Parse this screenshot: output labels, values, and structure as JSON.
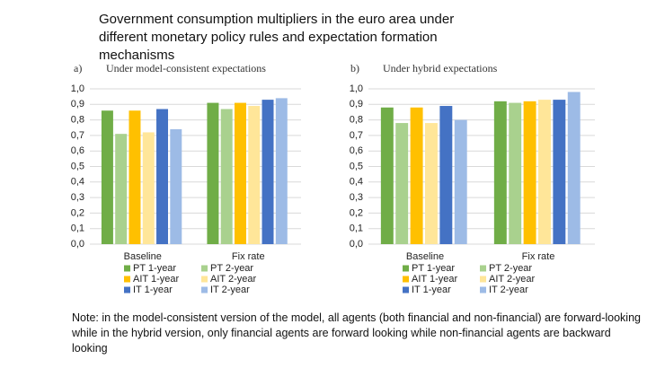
{
  "title": "Government consumption multipliers in the euro area under different monetary policy rules and expectation formation mechanisms",
  "note": "Note: in the model-consistent version of the model, all agents (both financial and non-financial) are forward-looking while in the hybrid version, only financial agents are forward looking while non-financial agents are backward looking",
  "chart_data": [
    {
      "type": "bar",
      "panel_label": "a)",
      "subtitle": "Under model-consistent expectations",
      "categories": [
        "Baseline",
        "Fix rate"
      ],
      "series": [
        {
          "name": "PT 1-year",
          "color": "#70ad47",
          "values": [
            0.86,
            0.91
          ]
        },
        {
          "name": "PT 2-year",
          "color": "#a9d18e",
          "values": [
            0.71,
            0.87
          ]
        },
        {
          "name": "AIT 1-year",
          "color": "#ffc000",
          "values": [
            0.86,
            0.91
          ]
        },
        {
          "name": "AIT 2-year",
          "color": "#ffe699",
          "values": [
            0.72,
            0.89
          ]
        },
        {
          "name": "IT 1-year",
          "color": "#4472c4",
          "values": [
            0.87,
            0.93
          ]
        },
        {
          "name": "IT 2-year",
          "color": "#9dbbe6",
          "values": [
            0.74,
            0.94
          ]
        }
      ],
      "ylim": [
        0,
        1
      ],
      "yticks": [
        {
          "value": 0,
          "label": "0,0"
        },
        {
          "value": 0.1,
          "label": "0,1"
        },
        {
          "value": 0.2,
          "label": "0,2"
        },
        {
          "value": 0.3,
          "label": "0,3"
        },
        {
          "value": 0.4,
          "label": "0,4"
        },
        {
          "value": 0.5,
          "label": "0,5"
        },
        {
          "value": 0.6,
          "label": "0,6"
        },
        {
          "value": 0.7,
          "label": "0,7"
        },
        {
          "value": 0.8,
          "label": "0,8"
        },
        {
          "value": 0.9,
          "label": "0,9"
        },
        {
          "value": 1,
          "label": "1,0"
        }
      ],
      "grid": true
    },
    {
      "type": "bar",
      "panel_label": "b)",
      "subtitle": "Under hybrid expectations",
      "categories": [
        "Baseline",
        "Fix rate"
      ],
      "series": [
        {
          "name": "PT 1-year",
          "color": "#70ad47",
          "values": [
            0.88,
            0.92
          ]
        },
        {
          "name": "PT 2-year",
          "color": "#a9d18e",
          "values": [
            0.78,
            0.91
          ]
        },
        {
          "name": "AIT 1-year",
          "color": "#ffc000",
          "values": [
            0.88,
            0.92
          ]
        },
        {
          "name": "AIT 2-year",
          "color": "#ffe699",
          "values": [
            0.78,
            0.93
          ]
        },
        {
          "name": "IT 1-year",
          "color": "#4472c4",
          "values": [
            0.89,
            0.93
          ]
        },
        {
          "name": "IT 2-year",
          "color": "#9dbbe6",
          "values": [
            0.8,
            0.98
          ]
        }
      ],
      "ylim": [
        0,
        1
      ],
      "yticks": [
        {
          "value": 0,
          "label": "0,0"
        },
        {
          "value": 0.1,
          "label": "0,1"
        },
        {
          "value": 0.2,
          "label": "0,2"
        },
        {
          "value": 0.3,
          "label": "0,3"
        },
        {
          "value": 0.4,
          "label": "0,4"
        },
        {
          "value": 0.5,
          "label": "0,5"
        },
        {
          "value": 0.6,
          "label": "0,6"
        },
        {
          "value": 0.7,
          "label": "0,7"
        },
        {
          "value": 0.8,
          "label": "0,8"
        },
        {
          "value": 0.9,
          "label": "0,9"
        },
        {
          "value": 1,
          "label": "1,0"
        }
      ],
      "grid": true
    }
  ]
}
